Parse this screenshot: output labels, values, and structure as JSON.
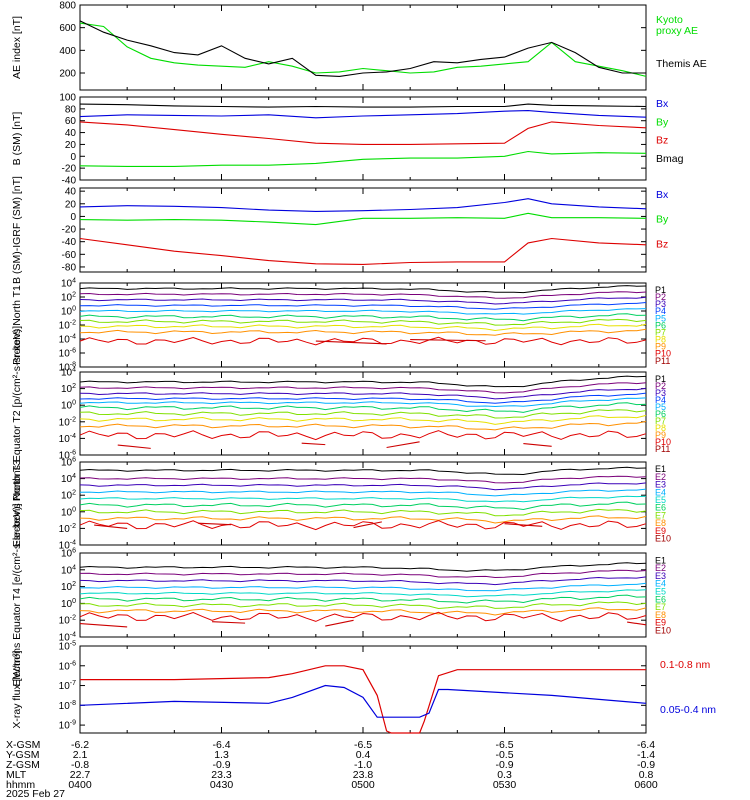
{
  "colors": {
    "black": "#000000",
    "red": "#dd0000",
    "green": "#00dd00",
    "blue": "#0000dd",
    "energy": [
      "#000000",
      "#7a007a",
      "#3a00b8",
      "#0040ff",
      "#00b0ff",
      "#00d8c8",
      "#00d060",
      "#80e000",
      "#e8e000",
      "#ff9000",
      "#e00000",
      "#a00000"
    ]
  },
  "chart_data": [
    {
      "id": "ae",
      "type": "line",
      "ylabel": "AE index [nT]",
      "yticks": [
        "800",
        "600",
        "400",
        "200"
      ],
      "ylim": [
        50,
        800
      ],
      "series": [
        {
          "name": "Kyoto proxy AE",
          "color": "green",
          "x": [
            "04:00",
            "04:05",
            "04:10",
            "04:15",
            "04:20",
            "04:25",
            "04:30",
            "04:35",
            "04:40",
            "04:45",
            "04:50",
            "04:55",
            "05:00",
            "05:05",
            "05:10",
            "05:15",
            "05:20",
            "05:25",
            "05:30",
            "05:35",
            "05:40",
            "05:45",
            "05:50",
            "05:55",
            "06:00"
          ],
          "values": [
            640,
            610,
            430,
            330,
            290,
            270,
            260,
            250,
            300,
            260,
            200,
            210,
            240,
            220,
            200,
            210,
            250,
            260,
            280,
            300,
            470,
            300,
            260,
            220,
            170
          ]
        },
        {
          "name": "Themis AE",
          "color": "black",
          "x": [
            "04:00",
            "04:05",
            "04:10",
            "04:15",
            "04:20",
            "04:25",
            "04:30",
            "04:35",
            "04:40",
            "04:45",
            "04:50",
            "04:55",
            "05:00",
            "05:05",
            "05:10",
            "05:15",
            "05:20",
            "05:25",
            "05:30",
            "05:35",
            "05:40",
            "05:45",
            "05:50",
            "05:55",
            "06:00"
          ],
          "values": [
            660,
            560,
            490,
            440,
            380,
            360,
            440,
            330,
            280,
            330,
            180,
            170,
            200,
            210,
            240,
            300,
            290,
            320,
            340,
            420,
            470,
            380,
            250,
            200,
            200
          ]
        }
      ]
    },
    {
      "id": "bsm",
      "type": "line",
      "ylabel": "B (SM) [nT]",
      "yticks": [
        "100",
        "80",
        "60",
        "40",
        "20",
        "0",
        "-20",
        "-40"
      ],
      "ylim": [
        -40,
        100
      ],
      "series": [
        {
          "name": "Bx",
          "color": "blue",
          "x": [
            "04:00",
            "04:10",
            "04:20",
            "04:30",
            "04:40",
            "04:50",
            "05:00",
            "05:10",
            "05:20",
            "05:30",
            "05:35",
            "05:40",
            "05:50",
            "06:00"
          ],
          "values": [
            67,
            70,
            69,
            68,
            70,
            65,
            68,
            70,
            72,
            76,
            77,
            74,
            69,
            66
          ]
        },
        {
          "name": "By",
          "color": "green",
          "x": [
            "04:00",
            "04:10",
            "04:20",
            "04:30",
            "04:40",
            "04:50",
            "05:00",
            "05:10",
            "05:20",
            "05:30",
            "05:35",
            "05:40",
            "05:50",
            "06:00"
          ],
          "values": [
            -16,
            -17,
            -17,
            -15,
            -15,
            -12,
            -5,
            -3,
            -3,
            0,
            8,
            4,
            6,
            5
          ]
        },
        {
          "name": "Bz",
          "color": "red",
          "x": [
            "04:00",
            "04:10",
            "04:20",
            "04:30",
            "04:40",
            "04:50",
            "05:00",
            "05:10",
            "05:20",
            "05:30",
            "05:35",
            "05:40",
            "05:50",
            "06:00"
          ],
          "values": [
            58,
            53,
            45,
            37,
            30,
            22,
            20,
            20,
            21,
            22,
            47,
            58,
            52,
            48
          ]
        },
        {
          "name": "Bmag",
          "color": "black",
          "x": [
            "04:00",
            "04:10",
            "04:20",
            "04:30",
            "04:40",
            "04:50",
            "05:00",
            "05:10",
            "05:20",
            "05:30",
            "05:35",
            "05:40",
            "05:50",
            "06:00"
          ],
          "values": [
            88,
            87,
            85,
            84,
            83,
            84,
            83,
            83,
            84,
            84,
            88,
            86,
            85,
            84
          ]
        }
      ]
    },
    {
      "id": "bdiff",
      "type": "line",
      "ylabel": "B (SM)-IGRF (SM) [nT]",
      "yticks": [
        "40",
        "20",
        "0",
        "-20",
        "-40",
        "-60",
        "-80"
      ],
      "ylim": [
        -88,
        45
      ],
      "series": [
        {
          "name": "Bx",
          "color": "blue",
          "x": [
            "04:00",
            "04:10",
            "04:20",
            "04:30",
            "04:40",
            "04:50",
            "05:00",
            "05:10",
            "05:20",
            "05:30",
            "05:35",
            "05:40",
            "05:50",
            "06:00"
          ],
          "values": [
            15,
            17,
            16,
            14,
            10,
            8,
            9,
            11,
            14,
            22,
            28,
            20,
            15,
            12
          ]
        },
        {
          "name": "By",
          "color": "green",
          "x": [
            "04:00",
            "04:10",
            "04:20",
            "04:30",
            "04:40",
            "04:50",
            "05:00",
            "05:10",
            "05:20",
            "05:30",
            "05:35",
            "05:40",
            "05:50",
            "06:00"
          ],
          "values": [
            -5,
            -6,
            -5,
            -6,
            -9,
            -13,
            -3,
            -3,
            -2,
            -3,
            5,
            -2,
            -2,
            -3
          ]
        },
        {
          "name": "Bz",
          "color": "red",
          "x": [
            "04:00",
            "04:10",
            "04:20",
            "04:30",
            "04:40",
            "04:50",
            "05:00",
            "05:10",
            "05:20",
            "05:30",
            "05:35",
            "05:40",
            "05:50",
            "06:00"
          ],
          "values": [
            -35,
            -45,
            -55,
            -62,
            -70,
            -75,
            -76,
            -73,
            -72,
            -72,
            -42,
            -35,
            -42,
            -45
          ]
        }
      ]
    },
    {
      "id": "p_n_t1",
      "type": "line",
      "yscale": "log",
      "ylabel": "Protons North T1",
      "yticks": [
        "10^4",
        "10^2",
        "10^0",
        "10^-2",
        "10^-4",
        "10^-6",
        "10^-8"
      ],
      "ylim_exp": [
        -8,
        4
      ],
      "channels": [
        "P1",
        "P2",
        "P3",
        "P4",
        "P5",
        "P6",
        "P7",
        "P8",
        "P9",
        "P10",
        "P11"
      ],
      "levels_exp": [
        3.2,
        2.4,
        1.6,
        0.8,
        0.0,
        -0.8,
        -1.5,
        -2.2,
        -3.0,
        -4.3,
        -5.5
      ],
      "fragments": [
        {
          "ch": 9,
          "start": "04:50",
          "end": "05:05"
        },
        {
          "ch": 9,
          "start": "05:10",
          "end": "05:26"
        }
      ]
    },
    {
      "id": "p_e_t2",
      "type": "line",
      "yscale": "log",
      "ylabel": "Protons Equator T2 [p/(cm^2-s-sr-keV)]",
      "yticks": [
        "10^4",
        "10^2",
        "10^0",
        "10^-2",
        "10^-4",
        "10^-6"
      ],
      "ylim_exp": [
        -6,
        4
      ],
      "channels": [
        "P1",
        "P2",
        "P3",
        "P4",
        "P5",
        "P6",
        "P7",
        "P8",
        "P9",
        "P10",
        "P11"
      ],
      "levels_exp": [
        2.8,
        2.1,
        1.4,
        0.8,
        0.3,
        -0.3,
        -1.0,
        -1.7,
        -2.5,
        -3.6,
        -4.8
      ],
      "fragments": [
        {
          "ch": 10,
          "start": "04:08",
          "end": "04:15"
        },
        {
          "ch": 10,
          "start": "04:47",
          "end": "04:52"
        },
        {
          "ch": 10,
          "start": "05:05",
          "end": "05:12"
        },
        {
          "ch": 10,
          "start": "05:34",
          "end": "05:40"
        }
      ]
    },
    {
      "id": "e_n_t3",
      "type": "line",
      "yscale": "log",
      "ylabel": "Electrons North T3",
      "yticks": [
        "10^6",
        "10^4",
        "10^2",
        "10^0",
        "10^-2",
        "10^-4"
      ],
      "ylim_exp": [
        -4,
        6
      ],
      "channels": [
        "E1",
        "E2",
        "E3",
        "E4",
        "E5",
        "E6",
        "E7",
        "E8",
        "E9",
        "E10"
      ],
      "levels_exp": [
        5.0,
        4.0,
        3.2,
        2.4,
        1.6,
        0.8,
        0.0,
        -0.8,
        -1.6,
        -2.5
      ],
      "fragments": [
        {
          "ch": 8,
          "start": "04:03",
          "end": "04:10"
        },
        {
          "ch": 8,
          "start": "04:25",
          "end": "04:32"
        },
        {
          "ch": 8,
          "start": "04:58",
          "end": "05:04"
        },
        {
          "ch": 8,
          "start": "05:30",
          "end": "05:38"
        }
      ]
    },
    {
      "id": "e_e_t4",
      "type": "line",
      "yscale": "log",
      "ylabel": "Electrons Equator T4 [e/(cm^2-s-sr-keV)]",
      "yticks": [
        "10^6",
        "10^4",
        "10^2",
        "10^0",
        "10^-2",
        "10^-4"
      ],
      "ylim_exp": [
        -4,
        6
      ],
      "channels": [
        "E1",
        "E2",
        "E3",
        "E4",
        "E5",
        "E6",
        "E7",
        "E8",
        "E9",
        "E10"
      ],
      "levels_exp": [
        4.3,
        3.5,
        2.7,
        1.9,
        1.2,
        0.5,
        -0.2,
        -0.9,
        -1.6,
        -2.4
      ],
      "fragments": [
        {
          "ch": 9,
          "start": "04:00",
          "end": "04:10"
        },
        {
          "ch": 9,
          "start": "04:28",
          "end": "04:35"
        },
        {
          "ch": 9,
          "start": "04:52",
          "end": "04:58"
        },
        {
          "ch": 9,
          "start": "05:56",
          "end": "06:00"
        }
      ]
    },
    {
      "id": "xray",
      "type": "line",
      "yscale": "log",
      "ylabel": "X-ray flux [W/m^2]",
      "yticks": [
        "10^-5",
        "10^-6",
        "10^-7",
        "10^-8",
        "10^-9"
      ],
      "ylim_exp": [
        -9.4,
        -5
      ],
      "series": [
        {
          "name": "0.1-0.8 nm",
          "color": "red",
          "x": [
            "04:00",
            "04:20",
            "04:40",
            "04:45",
            "04:52",
            "04:56",
            "05:00",
            "05:03",
            "05:05",
            "05:06",
            "05:12",
            "05:13",
            "05:16",
            "05:20",
            "05:40",
            "06:00"
          ],
          "exp": [
            -6.7,
            -6.7,
            -6.6,
            -6.4,
            -6.0,
            -6.0,
            -6.2,
            -7.5,
            -9.3,
            -9.4,
            -9.4,
            -8.8,
            -6.5,
            -6.2,
            -6.2,
            -6.2
          ]
        },
        {
          "name": "0.05-0.4 nm",
          "color": "blue",
          "x": [
            "04:00",
            "04:20",
            "04:40",
            "04:45",
            "04:52",
            "04:56",
            "05:00",
            "05:03",
            "05:06",
            "05:08",
            "05:12",
            "05:14",
            "05:16",
            "05:18",
            "05:40",
            "06:00"
          ],
          "exp": [
            -8.0,
            -7.8,
            -7.9,
            -7.6,
            -7.0,
            -7.1,
            -7.6,
            -8.6,
            -8.6,
            -8.6,
            -8.6,
            -8.4,
            -7.2,
            -7.2,
            -7.5,
            -7.9
          ]
        }
      ]
    }
  ],
  "legends": {
    "ae": [
      {
        "text": "Kyoto",
        "color": "green"
      },
      {
        "text": "proxy AE",
        "color": "green"
      },
      {
        "text": "Themis AE",
        "color": "black"
      }
    ],
    "bsm": [
      {
        "text": "Bx",
        "color": "blue"
      },
      {
        "text": "By",
        "color": "green"
      },
      {
        "text": "Bz",
        "color": "red"
      },
      {
        "text": "Bmag",
        "color": "black"
      }
    ],
    "bdiff": [
      {
        "text": "Bx",
        "color": "blue"
      },
      {
        "text": "By",
        "color": "green"
      },
      {
        "text": "Bz",
        "color": "red"
      }
    ],
    "xray": [
      {
        "text": "0.1-0.8 nm",
        "color": "red"
      },
      {
        "text": "0.05-0.4 nm",
        "color": "blue"
      }
    ]
  },
  "orbit": {
    "labels": [
      "X-GSM",
      "Y-GSM",
      "Z-GSM",
      "MLT",
      "hhmm",
      "2025 Feb 27"
    ],
    "columns": [
      {
        "time": "04:00",
        "x": "-6.2",
        "y": "2.1",
        "z": "-0.8",
        "mlt": "22.7",
        "hhmm": "0400"
      },
      {
        "time": "04:30",
        "x": "-6.4",
        "y": "1.3",
        "z": "-0.9",
        "mlt": "23.3",
        "hhmm": "0430"
      },
      {
        "time": "05:00",
        "x": "-6.5",
        "y": "0.4",
        "z": "-1.0",
        "mlt": "23.8",
        "hhmm": "0500"
      },
      {
        "time": "05:30",
        "x": "-6.5",
        "y": "-0.5",
        "z": "-0.9",
        "mlt": "0.3",
        "hhmm": "0530"
      },
      {
        "time": "06:00",
        "x": "-6.4",
        "y": "-1.4",
        "z": "-0.9",
        "mlt": "0.8",
        "hhmm": "0600"
      }
    ]
  }
}
